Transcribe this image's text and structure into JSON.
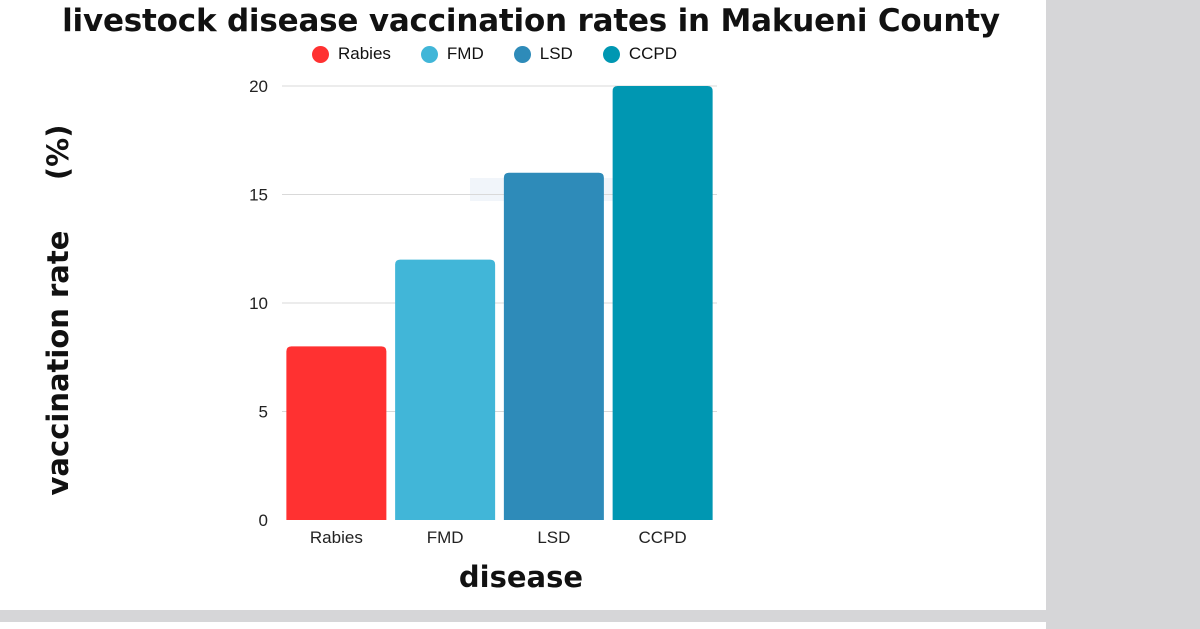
{
  "chart_data": {
    "type": "bar",
    "title": "livestock disease vaccination rates in Makueni County",
    "xlabel": "disease",
    "ylabel": "vaccination rate     (%)",
    "categories": [
      "Rabies",
      "FMD",
      "LSD",
      "CCPD"
    ],
    "values": [
      8,
      12,
      16,
      20
    ],
    "colors": [
      "#ff3131",
      "#41b6d8",
      "#2e8bb9",
      "#0097b2"
    ],
    "ylim": [
      0,
      20
    ],
    "yticks": [
      "0",
      "5",
      "10",
      "15",
      "20"
    ],
    "ytick_values": [
      0,
      5,
      10,
      15,
      20
    ],
    "grid": true,
    "legend": {
      "position": "top",
      "entries": [
        {
          "label": "Rabies",
          "color": "#ff3131"
        },
        {
          "label": "FMD",
          "color": "#41b6d8"
        },
        {
          "label": "LSD",
          "color": "#2e8bb9"
        },
        {
          "label": "CCPD",
          "color": "#0097b2"
        }
      ]
    }
  }
}
